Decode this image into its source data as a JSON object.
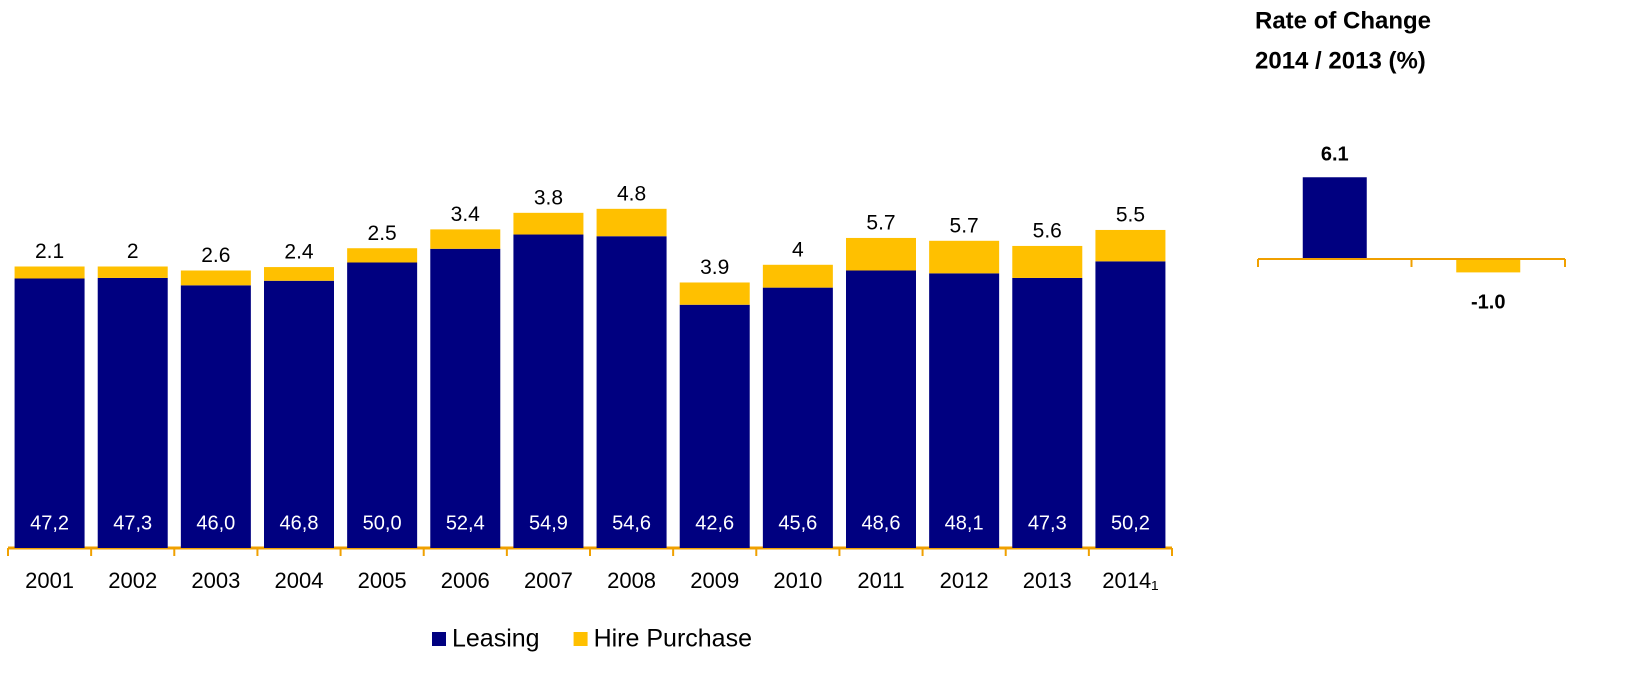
{
  "chart_data": [
    {
      "type": "bar",
      "stacked": true,
      "categories": [
        "2001",
        "2002",
        "2003",
        "2004",
        "2005",
        "2006",
        "2007",
        "2008",
        "2009",
        "2010",
        "2011",
        "2012",
        "2013",
        "2014₁"
      ],
      "series": [
        {
          "name": "Leasing",
          "color": "#000080",
          "values": [
            47.2,
            47.3,
            46.0,
            46.8,
            50.0,
            52.4,
            54.9,
            54.6,
            42.6,
            45.6,
            48.6,
            48.1,
            47.3,
            50.2
          ],
          "value_labels": [
            "47,2",
            "47,3",
            "46,0",
            "46,8",
            "50,0",
            "52,4",
            "54,9",
            "54,6",
            "42,6",
            "45,6",
            "48,6",
            "48,1",
            "47,3",
            "50,2"
          ]
        },
        {
          "name": "Hire Purchase",
          "color": "#FFC000",
          "values": [
            2.1,
            2.0,
            2.6,
            2.4,
            2.5,
            3.4,
            3.8,
            4.8,
            3.9,
            4.0,
            5.7,
            5.7,
            5.6,
            5.5
          ]
        }
      ]
    },
    {
      "type": "bar",
      "title": "Rate of Change",
      "subtitle": "2014 / 2013 (%)",
      "values": [
        6.1,
        -1.0
      ],
      "value_labels": [
        "6.1",
        "-1.0"
      ],
      "colors": [
        "#000080",
        "#FFC000"
      ]
    }
  ]
}
